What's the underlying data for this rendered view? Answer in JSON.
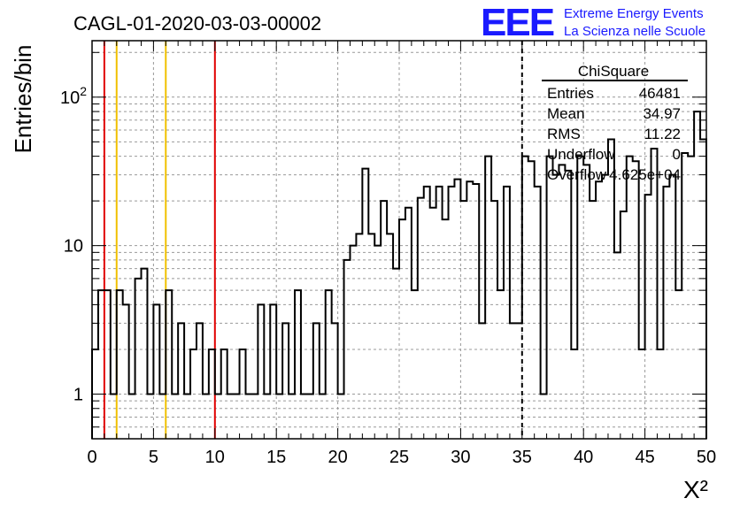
{
  "chart_data": {
    "type": "bar",
    "title": "CAGL-01-2020-03-03-00002",
    "xlabel": "X²",
    "ylabel": "Entries/bin",
    "xlim": [
      0,
      50
    ],
    "ylim": [
      0.5,
      240
    ],
    "log_y": true,
    "grid": true,
    "bin_width": 0.5,
    "x_ticks": [
      "0",
      "5",
      "10",
      "15",
      "20",
      "25",
      "30",
      "35",
      "40",
      "45",
      "50"
    ],
    "y_ticks": [
      {
        "value": 1,
        "label": "1"
      },
      {
        "value": 10,
        "label": "10"
      },
      {
        "value": 100,
        "label": "10",
        "exponent": "2"
      }
    ],
    "values": [
      2,
      5,
      5,
      1,
      5,
      4,
      1,
      6,
      7,
      1,
      4,
      1,
      5,
      1,
      3,
      1,
      2,
      3,
      1,
      2,
      1,
      2,
      1,
      1,
      2,
      1,
      1,
      4,
      1,
      4,
      1,
      3,
      1,
      5,
      1,
      1,
      3,
      1,
      5,
      3,
      1,
      8,
      10,
      12,
      33,
      12,
      10,
      20,
      12,
      7,
      15,
      18,
      5,
      21,
      25,
      18,
      25,
      15,
      25,
      28,
      20,
      27,
      26,
      3,
      40,
      20,
      5,
      25,
      3,
      3,
      40,
      37,
      25,
      1,
      40,
      30,
      35,
      32,
      2,
      40,
      35,
      20,
      27,
      30,
      52,
      9,
      17,
      40,
      37,
      2,
      22,
      45,
      2,
      25,
      30,
      5,
      42,
      40,
      80,
      52
    ],
    "vlines": [
      {
        "x": 1,
        "color": "#e00000",
        "style": "solid"
      },
      {
        "x": 2,
        "color": "#f0c000",
        "style": "solid"
      },
      {
        "x": 6,
        "color": "#f0c000",
        "style": "solid"
      },
      {
        "x": 10,
        "color": "#e00000",
        "style": "solid"
      },
      {
        "x": 35,
        "color": "#000000",
        "style": "dashed"
      }
    ]
  },
  "stats_box": {
    "title": "ChiSquare",
    "rows": [
      {
        "label": "Entries",
        "value": "46481"
      },
      {
        "label": "Mean",
        "value": "34.97"
      },
      {
        "label": "RMS",
        "value": "11.22"
      },
      {
        "label": "Underflow",
        "value": "0"
      },
      {
        "label": "Overflow",
        "value": "4.625e+04"
      }
    ]
  },
  "logo": {
    "text": "EEE",
    "line1": "Extreme Energy Events",
    "line2": "La Scienza nelle Scuole",
    "color": "#1a1aff"
  }
}
